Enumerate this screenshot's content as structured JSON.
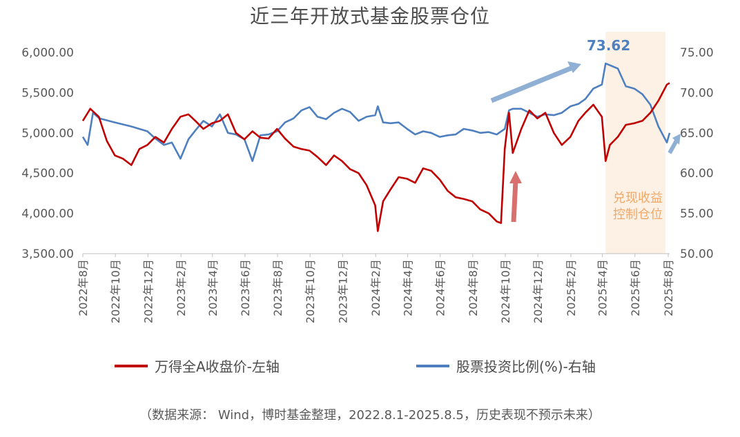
{
  "title": "近三年开放式基金股票仓位",
  "source_note": "（数据来源： Wind，博时基金整理，2022.8.1-2025.8.5，历史表现不预示未来）",
  "annotations": {
    "peak_label": "73.62",
    "shaded_label": "兑现收益控制仓位"
  },
  "colors": {
    "left_series": "#c00000",
    "right_series": "#4e7fbf",
    "shade": "#fdf1e6",
    "shade_text": "#f0a868"
  },
  "chart_data": {
    "type": "line",
    "title": "近三年开放式基金股票仓位",
    "x_range": [
      "2022-08-01",
      "2025-08-05"
    ],
    "x_tick_labels": [
      "2022年8月",
      "2022年10月",
      "2022年12月",
      "2023年2月",
      "2023年4月",
      "2023年6月",
      "2023年8月",
      "2023年10月",
      "2023年12月",
      "2024年2月",
      "2024年4月",
      "2024年6月",
      "2024年8月",
      "2024年10月",
      "2024年12月",
      "2025年2月",
      "2025年4月",
      "2025年6月",
      "2025年8月"
    ],
    "y_left": {
      "range": [
        3500,
        6000
      ],
      "tick_labels": [
        "6,000.00",
        "5,500.00",
        "5,000.00",
        "4,500.00",
        "4,000.00",
        "3,500.00"
      ],
      "ticks": [
        6000,
        5500,
        5000,
        4500,
        4000,
        3500
      ]
    },
    "y_right": {
      "range": [
        50,
        75
      ],
      "tick_labels": [
        "75.00",
        "70.00",
        "65.00",
        "60.00",
        "55.00",
        "50.00"
      ],
      "ticks": [
        75,
        70,
        65,
        60,
        55,
        50
      ]
    },
    "shaded_region": {
      "from": "2025-04-07",
      "to": "2025-08-05"
    },
    "legend_position": "bottom",
    "series": [
      {
        "name": "万得全A收盘价-左轴",
        "axis": "left",
        "points": [
          [
            "2022-08-01",
            5150
          ],
          [
            "2022-08-15",
            5300
          ],
          [
            "2022-08-31",
            5200
          ],
          [
            "2022-09-15",
            4900
          ],
          [
            "2022-09-30",
            4720
          ],
          [
            "2022-10-15",
            4680
          ],
          [
            "2022-10-31",
            4600
          ],
          [
            "2022-11-15",
            4800
          ],
          [
            "2022-11-30",
            4850
          ],
          [
            "2022-12-15",
            4950
          ],
          [
            "2022-12-31",
            4880
          ],
          [
            "2023-01-15",
            5050
          ],
          [
            "2023-01-31",
            5200
          ],
          [
            "2023-02-15",
            5230
          ],
          [
            "2023-02-28",
            5150
          ],
          [
            "2023-03-15",
            5050
          ],
          [
            "2023-03-31",
            5120
          ],
          [
            "2023-04-15",
            5150
          ],
          [
            "2023-04-30",
            5230
          ],
          [
            "2023-05-15",
            5000
          ],
          [
            "2023-05-31",
            4920
          ],
          [
            "2023-06-15",
            5020
          ],
          [
            "2023-06-30",
            4940
          ],
          [
            "2023-07-15",
            4930
          ],
          [
            "2023-07-31",
            5050
          ],
          [
            "2023-08-15",
            4930
          ],
          [
            "2023-08-31",
            4830
          ],
          [
            "2023-09-15",
            4800
          ],
          [
            "2023-09-30",
            4780
          ],
          [
            "2023-10-15",
            4700
          ],
          [
            "2023-10-31",
            4600
          ],
          [
            "2023-11-15",
            4720
          ],
          [
            "2023-11-30",
            4650
          ],
          [
            "2023-12-15",
            4550
          ],
          [
            "2023-12-31",
            4500
          ],
          [
            "2024-01-15",
            4350
          ],
          [
            "2024-01-31",
            4100
          ],
          [
            "2024-02-05",
            3780
          ],
          [
            "2024-02-15",
            4150
          ],
          [
            "2024-02-29",
            4300
          ],
          [
            "2024-03-15",
            4450
          ],
          [
            "2024-03-31",
            4430
          ],
          [
            "2024-04-15",
            4380
          ],
          [
            "2024-04-30",
            4560
          ],
          [
            "2024-05-15",
            4530
          ],
          [
            "2024-05-31",
            4420
          ],
          [
            "2024-06-15",
            4280
          ],
          [
            "2024-06-30",
            4200
          ],
          [
            "2024-07-15",
            4180
          ],
          [
            "2024-07-31",
            4150
          ],
          [
            "2024-08-15",
            4050
          ],
          [
            "2024-08-31",
            4000
          ],
          [
            "2024-09-15",
            3900
          ],
          [
            "2024-09-23",
            3880
          ],
          [
            "2024-09-30",
            4800
          ],
          [
            "2024-10-08",
            5250
          ],
          [
            "2024-10-15",
            4750
          ],
          [
            "2024-10-31",
            5050
          ],
          [
            "2024-11-15",
            5280
          ],
          [
            "2024-11-30",
            5180
          ],
          [
            "2024-12-15",
            5250
          ],
          [
            "2024-12-31",
            5000
          ],
          [
            "2025-01-15",
            4850
          ],
          [
            "2025-01-31",
            4950
          ],
          [
            "2025-02-15",
            5150
          ],
          [
            "2025-02-28",
            5250
          ],
          [
            "2025-03-15",
            5350
          ],
          [
            "2025-03-31",
            5200
          ],
          [
            "2025-04-07",
            4650
          ],
          [
            "2025-04-15",
            4850
          ],
          [
            "2025-04-30",
            4950
          ],
          [
            "2025-05-15",
            5100
          ],
          [
            "2025-05-31",
            5120
          ],
          [
            "2025-06-15",
            5150
          ],
          [
            "2025-06-30",
            5250
          ],
          [
            "2025-07-15",
            5400
          ],
          [
            "2025-07-31",
            5600
          ],
          [
            "2025-08-05",
            5620
          ]
        ]
      },
      {
        "name": "股票投资比例(%)-右轴",
        "axis": "right",
        "points": [
          [
            "2022-08-01",
            64.5
          ],
          [
            "2022-08-10",
            63.5
          ],
          [
            "2022-08-20",
            67.5
          ],
          [
            "2022-09-01",
            66.8
          ],
          [
            "2022-09-30",
            66.3
          ],
          [
            "2022-10-31",
            65.8
          ],
          [
            "2022-11-30",
            65.2
          ],
          [
            "2022-12-15",
            64.3
          ],
          [
            "2022-12-31",
            63.5
          ],
          [
            "2023-01-15",
            63.8
          ],
          [
            "2023-01-31",
            61.8
          ],
          [
            "2023-02-15",
            64.2
          ],
          [
            "2023-02-28",
            65.3
          ],
          [
            "2023-03-15",
            66.5
          ],
          [
            "2023-03-31",
            65.8
          ],
          [
            "2023-04-15",
            67.3
          ],
          [
            "2023-04-30",
            65.0
          ],
          [
            "2023-05-15",
            64.8
          ],
          [
            "2023-05-31",
            64.2
          ],
          [
            "2023-06-15",
            61.5
          ],
          [
            "2023-06-30",
            64.7
          ],
          [
            "2023-07-15",
            64.8
          ],
          [
            "2023-07-31",
            65.2
          ],
          [
            "2023-08-15",
            66.3
          ],
          [
            "2023-08-31",
            66.8
          ],
          [
            "2023-09-15",
            67.8
          ],
          [
            "2023-09-30",
            68.2
          ],
          [
            "2023-10-15",
            67.0
          ],
          [
            "2023-10-31",
            66.7
          ],
          [
            "2023-11-15",
            67.5
          ],
          [
            "2023-11-30",
            68.0
          ],
          [
            "2023-12-15",
            67.6
          ],
          [
            "2023-12-31",
            66.5
          ],
          [
            "2024-01-15",
            67.0
          ],
          [
            "2024-01-31",
            67.2
          ],
          [
            "2024-02-05",
            68.3
          ],
          [
            "2024-02-15",
            66.3
          ],
          [
            "2024-02-29",
            66.2
          ],
          [
            "2024-03-15",
            66.3
          ],
          [
            "2024-03-31",
            65.5
          ],
          [
            "2024-04-15",
            64.8
          ],
          [
            "2024-04-30",
            65.2
          ],
          [
            "2024-05-15",
            65.0
          ],
          [
            "2024-05-31",
            64.5
          ],
          [
            "2024-06-15",
            64.7
          ],
          [
            "2024-06-30",
            64.8
          ],
          [
            "2024-07-15",
            65.5
          ],
          [
            "2024-07-31",
            65.3
          ],
          [
            "2024-08-15",
            65.0
          ],
          [
            "2024-08-31",
            65.1
          ],
          [
            "2024-09-15",
            64.8
          ],
          [
            "2024-09-30",
            65.5
          ],
          [
            "2024-10-08",
            67.8
          ],
          [
            "2024-10-15",
            68.0
          ],
          [
            "2024-10-31",
            68.0
          ],
          [
            "2024-11-15",
            67.5
          ],
          [
            "2024-11-30",
            67.0
          ],
          [
            "2024-12-15",
            67.3
          ],
          [
            "2024-12-31",
            67.2
          ],
          [
            "2025-01-15",
            67.5
          ],
          [
            "2025-01-31",
            68.3
          ],
          [
            "2025-02-15",
            68.6
          ],
          [
            "2025-02-28",
            69.2
          ],
          [
            "2025-03-15",
            70.5
          ],
          [
            "2025-03-31",
            71.0
          ],
          [
            "2025-04-07",
            73.62
          ],
          [
            "2025-04-30",
            73.0
          ],
          [
            "2025-05-15",
            70.8
          ],
          [
            "2025-05-31",
            70.5
          ],
          [
            "2025-06-15",
            69.8
          ],
          [
            "2025-06-30",
            68.5
          ],
          [
            "2025-07-15",
            65.8
          ],
          [
            "2025-07-31",
            63.8
          ],
          [
            "2025-08-05",
            65.0
          ]
        ]
      }
    ]
  }
}
